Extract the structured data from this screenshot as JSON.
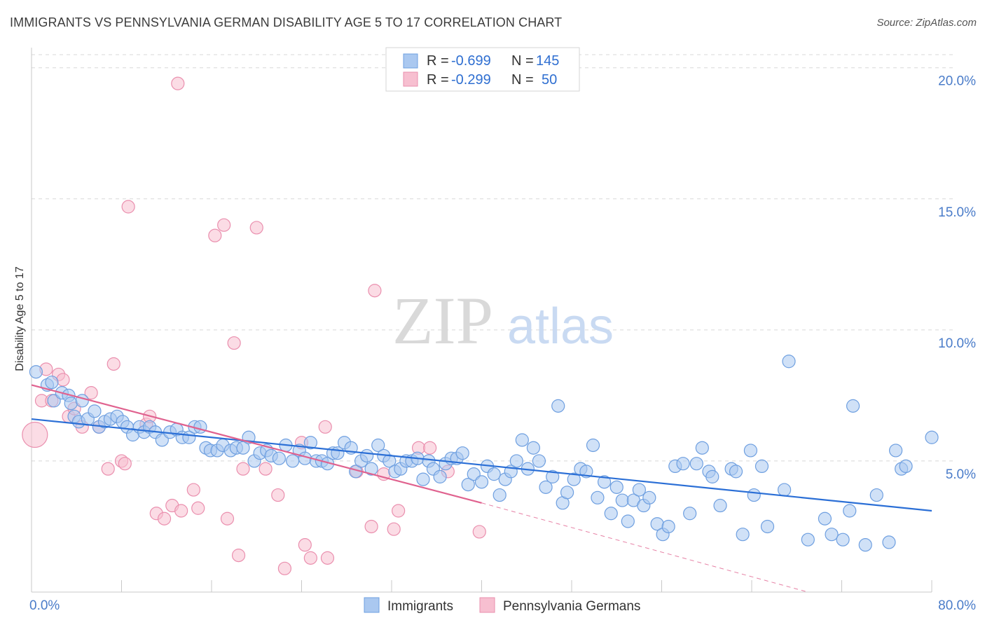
{
  "title": "IMMIGRANTS VS PENNSYLVANIA GERMAN DISABILITY AGE 5 TO 17 CORRELATION CHART",
  "source": "Source: ZipAtlas.com",
  "watermark": {
    "zip": "ZIP",
    "atlas": "atlas"
  },
  "colors": {
    "blue_fill": "#aac8f0",
    "blue_stroke": "#6e9fe0",
    "blue_line": "#2b6fd6",
    "pink_fill": "#f7bfd0",
    "pink_stroke": "#ea8fae",
    "pink_line": "#e0628f",
    "grid": "#d8d8d8",
    "tick_text": "#4a7cc9"
  },
  "legend": {
    "rows": [
      {
        "r_label": "R =",
        "r_value": "-0.699",
        "n_label": "N =",
        "n_value": "145",
        "series": "blue"
      },
      {
        "r_label": "R =",
        "r_value": "-0.299",
        "n_label": "N =",
        "n_value": "50",
        "series": "pink"
      }
    ]
  },
  "bottom_legend": {
    "immigrants": "Immigrants",
    "pa_germans": "Pennsylvania Germans"
  },
  "chart_data": {
    "type": "scatter",
    "xlabel": "",
    "ylabel": "Disability Age 5 to 17",
    "xlim": [
      0,
      80
    ],
    "ylim": [
      0,
      20.5
    ],
    "x_tick_labels": [
      {
        "v": 0,
        "label": "0.0%"
      },
      {
        "v": 80,
        "label": "80.0%"
      }
    ],
    "y_ticks": [
      {
        "v": 5,
        "label": "5.0%"
      },
      {
        "v": 10,
        "label": "10.0%"
      },
      {
        "v": 15,
        "label": "15.0%"
      },
      {
        "v": 20,
        "label": "20.0%"
      }
    ],
    "grid": "horizontal dashed",
    "series": [
      {
        "name": "Immigrants",
        "color": "blue",
        "trend": {
          "x0": 0,
          "y0": 6.6,
          "x1": 80,
          "y1": 3.1
        },
        "points": [
          [
            0.4,
            8.4
          ],
          [
            1.4,
            7.9
          ],
          [
            1.8,
            8.0
          ],
          [
            2.0,
            7.3
          ],
          [
            2.7,
            7.6
          ],
          [
            3.3,
            7.5
          ],
          [
            3.5,
            7.2
          ],
          [
            3.8,
            6.7
          ],
          [
            4.2,
            6.5
          ],
          [
            4.5,
            7.3
          ],
          [
            5.0,
            6.6
          ],
          [
            5.6,
            6.9
          ],
          [
            6.0,
            6.3
          ],
          [
            6.5,
            6.5
          ],
          [
            7.0,
            6.6
          ],
          [
            7.6,
            6.7
          ],
          [
            8.1,
            6.5
          ],
          [
            8.5,
            6.3
          ],
          [
            9.0,
            6.0
          ],
          [
            9.6,
            6.3
          ],
          [
            10.0,
            6.1
          ],
          [
            10.5,
            6.3
          ],
          [
            11.0,
            6.1
          ],
          [
            11.6,
            5.8
          ],
          [
            12.3,
            6.1
          ],
          [
            12.9,
            6.2
          ],
          [
            13.4,
            5.9
          ],
          [
            14.0,
            5.9
          ],
          [
            14.5,
            6.3
          ],
          [
            15.0,
            6.3
          ],
          [
            15.5,
            5.5
          ],
          [
            15.9,
            5.4
          ],
          [
            16.5,
            5.4
          ],
          [
            17.0,
            5.6
          ],
          [
            17.7,
            5.4
          ],
          [
            18.2,
            5.5
          ],
          [
            18.8,
            5.5
          ],
          [
            19.3,
            5.9
          ],
          [
            19.8,
            5.0
          ],
          [
            20.3,
            5.3
          ],
          [
            20.9,
            5.4
          ],
          [
            21.3,
            5.2
          ],
          [
            22.0,
            5.1
          ],
          [
            22.6,
            5.6
          ],
          [
            23.2,
            5.0
          ],
          [
            23.8,
            5.4
          ],
          [
            24.3,
            5.1
          ],
          [
            24.8,
            5.7
          ],
          [
            25.3,
            5.0
          ],
          [
            25.8,
            5.0
          ],
          [
            26.3,
            4.9
          ],
          [
            26.8,
            5.3
          ],
          [
            27.2,
            5.3
          ],
          [
            27.8,
            5.7
          ],
          [
            28.4,
            5.5
          ],
          [
            28.8,
            4.6
          ],
          [
            29.3,
            5.0
          ],
          [
            29.8,
            5.2
          ],
          [
            30.2,
            4.7
          ],
          [
            30.8,
            5.6
          ],
          [
            31.3,
            5.2
          ],
          [
            31.8,
            5.0
          ],
          [
            32.3,
            4.6
          ],
          [
            32.8,
            4.7
          ],
          [
            33.3,
            5.0
          ],
          [
            33.8,
            5.0
          ],
          [
            34.3,
            5.1
          ],
          [
            34.8,
            4.3
          ],
          [
            35.3,
            5.0
          ],
          [
            35.7,
            4.7
          ],
          [
            36.3,
            4.4
          ],
          [
            36.8,
            4.9
          ],
          [
            37.3,
            5.1
          ],
          [
            37.8,
            5.1
          ],
          [
            38.3,
            5.3
          ],
          [
            38.8,
            4.1
          ],
          [
            39.3,
            4.5
          ],
          [
            40.0,
            4.2
          ],
          [
            40.5,
            4.8
          ],
          [
            41.1,
            4.5
          ],
          [
            41.6,
            3.7
          ],
          [
            42.1,
            4.3
          ],
          [
            42.6,
            4.6
          ],
          [
            43.1,
            5.0
          ],
          [
            43.6,
            5.8
          ],
          [
            44.1,
            4.7
          ],
          [
            44.6,
            5.5
          ],
          [
            45.1,
            5.0
          ],
          [
            45.7,
            4.0
          ],
          [
            46.3,
            4.4
          ],
          [
            46.8,
            7.1
          ],
          [
            47.2,
            3.4
          ],
          [
            47.6,
            3.8
          ],
          [
            48.2,
            4.3
          ],
          [
            48.8,
            4.7
          ],
          [
            49.3,
            4.6
          ],
          [
            49.9,
            5.6
          ],
          [
            50.3,
            3.6
          ],
          [
            50.9,
            4.2
          ],
          [
            51.5,
            3.0
          ],
          [
            52.0,
            4.0
          ],
          [
            52.5,
            3.5
          ],
          [
            53.0,
            2.7
          ],
          [
            53.5,
            3.5
          ],
          [
            54.0,
            3.9
          ],
          [
            54.4,
            3.3
          ],
          [
            54.9,
            3.6
          ],
          [
            55.6,
            2.6
          ],
          [
            56.1,
            2.2
          ],
          [
            56.6,
            2.5
          ],
          [
            57.2,
            4.8
          ],
          [
            57.9,
            4.9
          ],
          [
            58.5,
            3.0
          ],
          [
            59.1,
            4.9
          ],
          [
            59.6,
            5.5
          ],
          [
            60.2,
            4.6
          ],
          [
            60.5,
            4.4
          ],
          [
            61.2,
            3.3
          ],
          [
            62.2,
            4.7
          ],
          [
            62.6,
            4.6
          ],
          [
            63.2,
            2.2
          ],
          [
            63.9,
            5.4
          ],
          [
            64.2,
            3.7
          ],
          [
            64.9,
            4.8
          ],
          [
            65.4,
            2.5
          ],
          [
            66.9,
            3.9
          ],
          [
            67.3,
            8.8
          ],
          [
            69.0,
            2.0
          ],
          [
            70.5,
            2.8
          ],
          [
            71.1,
            2.2
          ],
          [
            72.1,
            2.0
          ],
          [
            72.7,
            3.1
          ],
          [
            73.0,
            7.1
          ],
          [
            74.1,
            1.8
          ],
          [
            75.1,
            3.7
          ],
          [
            76.2,
            1.9
          ],
          [
            76.8,
            5.4
          ],
          [
            77.3,
            4.7
          ],
          [
            77.7,
            4.8
          ],
          [
            80.0,
            5.9
          ]
        ]
      },
      {
        "name": "Pennsylvania Germans",
        "color": "pink",
        "trend": {
          "x0": 0,
          "y0": 7.9,
          "x1": 40,
          "y1": 3.4
        },
        "trend_ext": {
          "x0": 40,
          "y0": 3.4,
          "x1": 69,
          "y1": 0.0
        },
        "points": [
          [
            0.3,
            6.0
          ],
          [
            0.9,
            7.3
          ],
          [
            1.3,
            8.5
          ],
          [
            1.8,
            7.3
          ],
          [
            2.4,
            8.3
          ],
          [
            2.8,
            8.1
          ],
          [
            3.3,
            6.7
          ],
          [
            3.8,
            7.0
          ],
          [
            4.5,
            6.3
          ],
          [
            5.3,
            7.6
          ],
          [
            6.0,
            6.3
          ],
          [
            6.8,
            4.7
          ],
          [
            7.3,
            8.7
          ],
          [
            8.0,
            5.0
          ],
          [
            8.3,
            4.9
          ],
          [
            8.6,
            14.7
          ],
          [
            10.2,
            6.4
          ],
          [
            10.5,
            6.7
          ],
          [
            11.1,
            3.0
          ],
          [
            11.8,
            2.8
          ],
          [
            12.5,
            3.3
          ],
          [
            13.0,
            19.4
          ],
          [
            13.3,
            3.1
          ],
          [
            14.4,
            3.9
          ],
          [
            14.8,
            3.2
          ],
          [
            16.3,
            13.6
          ],
          [
            17.1,
            14.0
          ],
          [
            17.4,
            2.8
          ],
          [
            18.0,
            9.5
          ],
          [
            18.4,
            1.4
          ],
          [
            18.8,
            4.7
          ],
          [
            20.0,
            13.9
          ],
          [
            20.8,
            4.7
          ],
          [
            21.9,
            3.7
          ],
          [
            22.5,
            0.9
          ],
          [
            24.0,
            5.7
          ],
          [
            24.3,
            1.8
          ],
          [
            24.8,
            1.3
          ],
          [
            26.1,
            6.3
          ],
          [
            26.3,
            1.3
          ],
          [
            28.9,
            4.6
          ],
          [
            30.2,
            2.5
          ],
          [
            30.5,
            11.5
          ],
          [
            31.3,
            4.5
          ],
          [
            32.2,
            2.4
          ],
          [
            32.6,
            3.1
          ],
          [
            34.4,
            5.5
          ],
          [
            35.4,
            5.5
          ],
          [
            39.8,
            2.3
          ],
          [
            37.0,
            4.6
          ]
        ]
      }
    ]
  }
}
